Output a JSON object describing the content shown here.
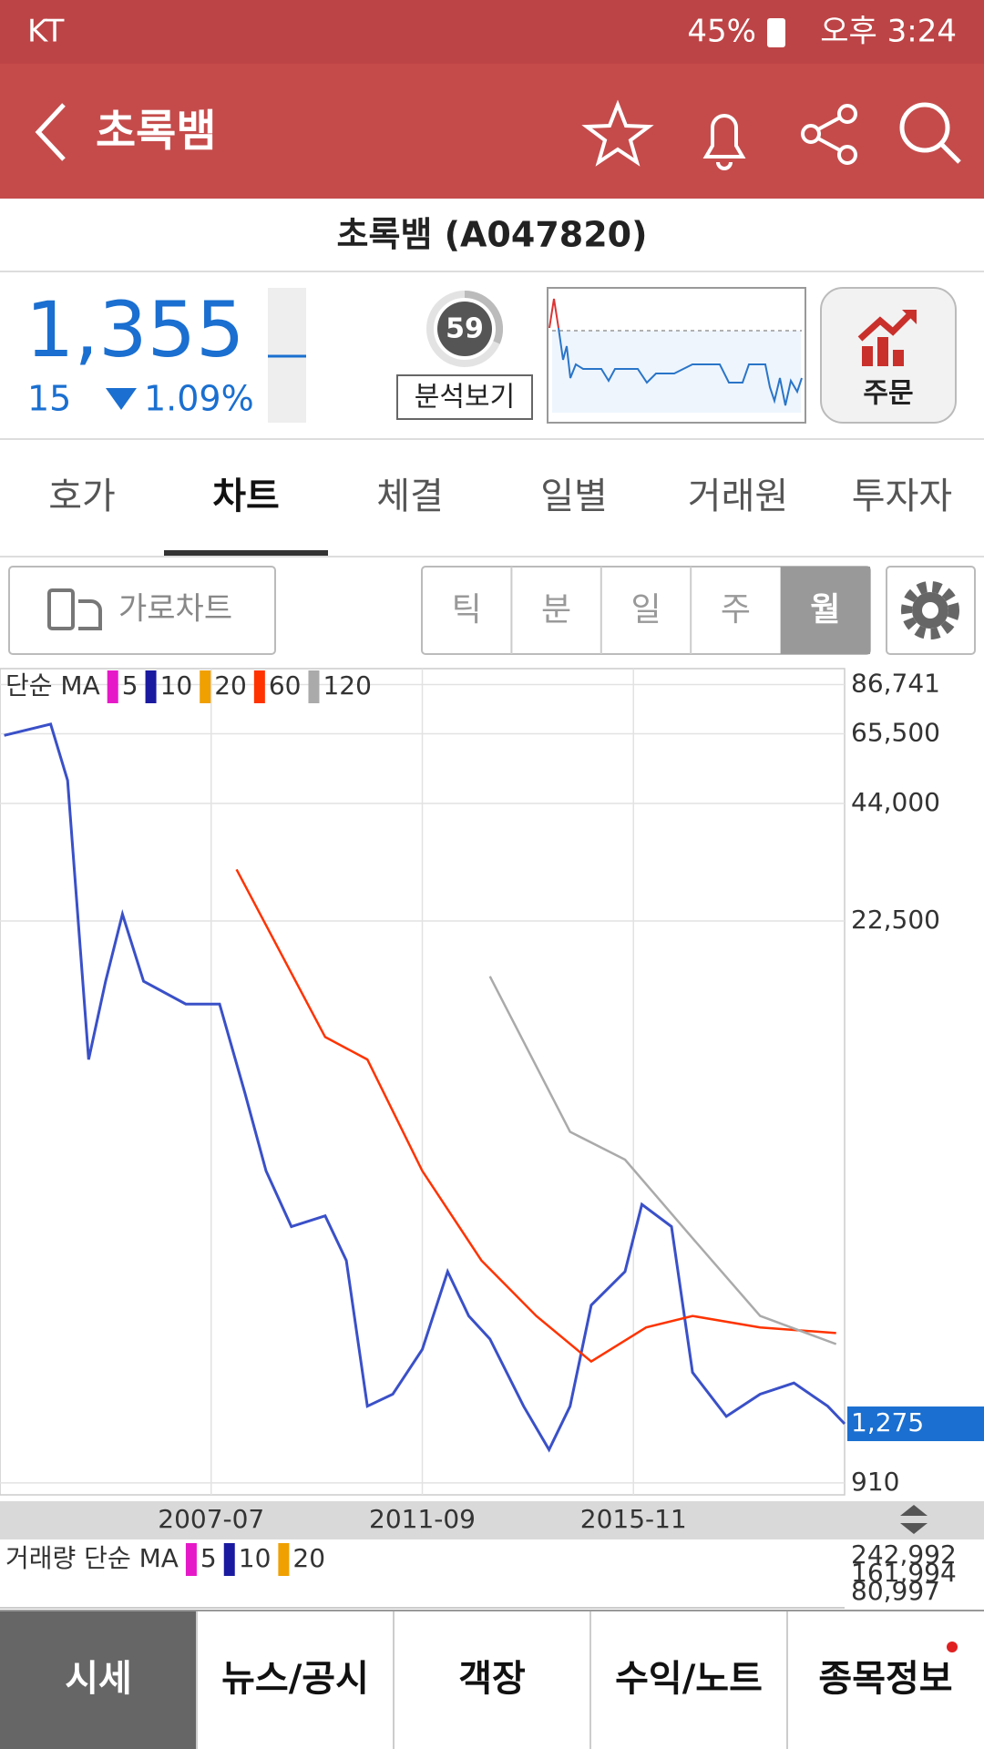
{
  "status_bar": {
    "carrier": "KT",
    "battery": "45%",
    "time": "오후 3:24"
  },
  "header": {
    "title": "초록뱀"
  },
  "stock": {
    "name": "초록뱀 (A047820)",
    "price": "1,355",
    "change": "15",
    "change_pct": "1.09%",
    "score": "59",
    "analysis_button": "분석보기",
    "order_button": "주문"
  },
  "tabs": [
    "호가",
    "차트",
    "체결",
    "일별",
    "거래원",
    "투자자"
  ],
  "chart_controls": {
    "landscape": "가로차트",
    "periods": [
      "틱",
      "분",
      "일",
      "주",
      "월"
    ]
  },
  "chart_data": {
    "type": "line",
    "legend_title": "단순 MA",
    "legend": [
      {
        "name": "5",
        "color": "#e619c8"
      },
      {
        "name": "10",
        "color": "#1a1aa0"
      },
      {
        "name": "20",
        "color": "#f0a000"
      },
      {
        "name": "60",
        "color": "#ff3300"
      },
      {
        "name": "120",
        "color": "#aaaaaa"
      }
    ],
    "yscale": "log",
    "ylim": [
      850,
      95000
    ],
    "yticks": [
      {
        "value": 86741,
        "label": "86,741"
      },
      {
        "value": 65500,
        "label": "65,500"
      },
      {
        "value": 44000,
        "label": "44,000"
      },
      {
        "value": 22500,
        "label": "22,500"
      },
      910
    ],
    "xlim": [
      "2003-05",
      "2020-01"
    ],
    "xticks": [
      "2007-07",
      "2011-09",
      "2015-11"
    ],
    "grid": true,
    "series": [
      {
        "color": "#3a50c8",
        "x": [
          "2003-06",
          "2004-05",
          "2004-09",
          "2005-02",
          "2005-06",
          "2005-10",
          "2006-03",
          "2007-01",
          "2007-09",
          "2008-03",
          "2008-08",
          "2009-02",
          "2009-10",
          "2010-03",
          "2010-08",
          "2011-02",
          "2011-09",
          "2012-03",
          "2012-08",
          "2013-01",
          "2013-09",
          "2014-03",
          "2014-08",
          "2015-01",
          "2015-09",
          "2016-01",
          "2016-08",
          "2017-01",
          "2017-09",
          "2018-05",
          "2019-01",
          "2019-09",
          "2020-01"
        ],
        "values": [
          64900,
          69200,
          50200,
          10200,
          15950,
          23400,
          15950,
          14000,
          14000,
          8430,
          5400,
          3930,
          4180,
          3240,
          1410,
          1510,
          1950,
          3040,
          2360,
          2070,
          1410,
          1100,
          1410,
          2510,
          3040,
          4460,
          3930,
          1710,
          1330,
          1510,
          1610,
          1410,
          1275
        ]
      },
      {
        "color": "#ff3300",
        "x": [
          "2008-01",
          "2009-10",
          "2010-08",
          "2011-09",
          "2012-11",
          "2013-12",
          "2015-01",
          "2016-02",
          "2017-01",
          "2018-05",
          "2019-11"
        ],
        "values": [
          30200,
          11600,
          10200,
          5400,
          3240,
          2360,
          1820,
          2210,
          2360,
          2210,
          2140
        ]
      },
      {
        "color": "#aaaaaa",
        "x": [
          "2013-01",
          "2014-08",
          "2015-09",
          "2017-01",
          "2018-05",
          "2019-11"
        ],
        "values": [
          16400,
          6750,
          5760,
          3680,
          2360,
          2010
        ]
      }
    ],
    "current": {
      "value": 1275,
      "label": "1,275",
      "color": "#1a6fd0"
    }
  },
  "volume": {
    "legend_title": "거래량 단순 MA",
    "legend": [
      {
        "name": "5",
        "color": "#e619c8"
      },
      {
        "name": "10",
        "color": "#1a1aa0"
      },
      {
        "name": "20",
        "color": "#f0a000"
      }
    ],
    "ytick_labels": [
      "242,992",
      "161,994",
      "80,997"
    ]
  },
  "bottom_nav": [
    "시세",
    "뉴스/공시",
    "객장",
    "수익/노트",
    "종목정보"
  ]
}
